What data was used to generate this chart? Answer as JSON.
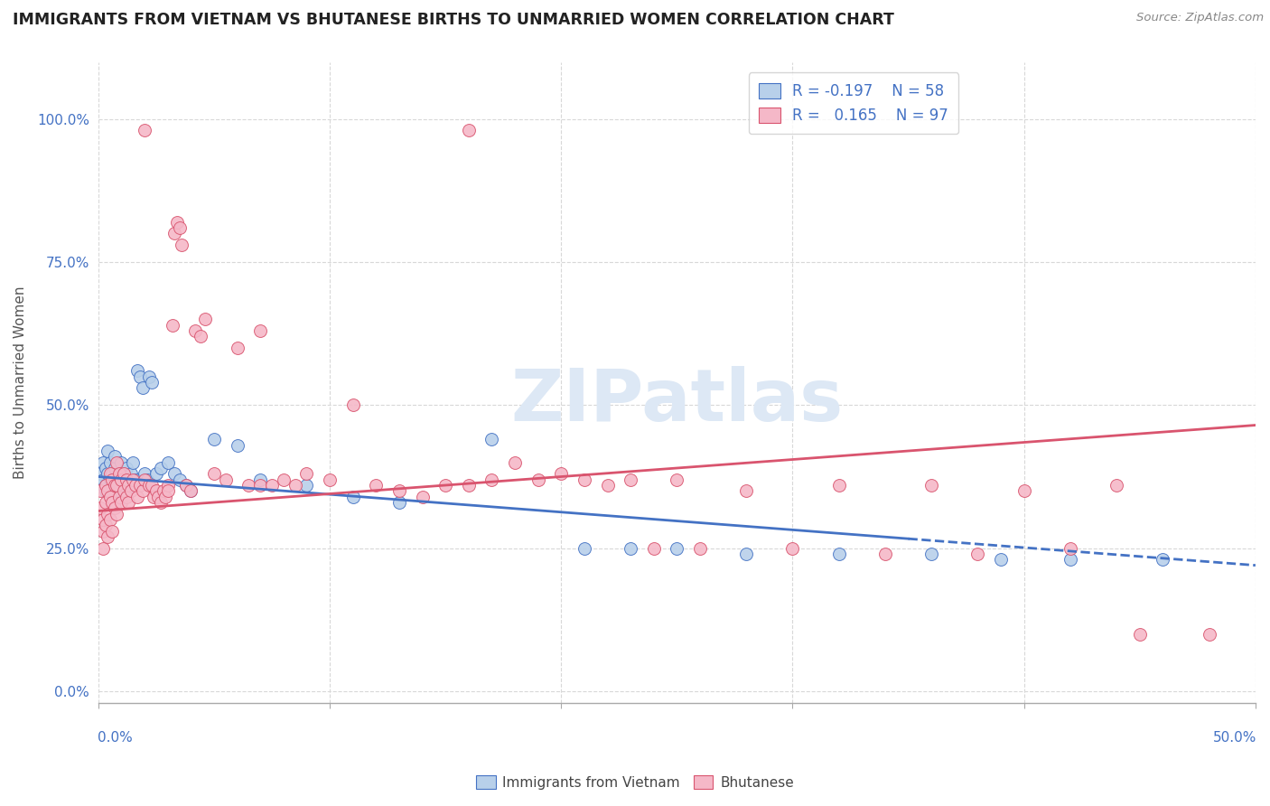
{
  "title": "IMMIGRANTS FROM VIETNAM VS BHUTANESE BIRTHS TO UNMARRIED WOMEN CORRELATION CHART",
  "source": "Source: ZipAtlas.com",
  "ylabel": "Births to Unmarried Women",
  "ylabel_ticks": [
    "0.0%",
    "25.0%",
    "50.0%",
    "75.0%",
    "100.0%"
  ],
  "ylabel_tick_vals": [
    0.0,
    0.25,
    0.5,
    0.75,
    1.0
  ],
  "xlim": [
    0.0,
    0.5
  ],
  "ylim": [
    -0.02,
    1.1
  ],
  "color_blue": "#b8d0ea",
  "color_pink": "#f5b8c8",
  "color_line_blue": "#4472c4",
  "color_line_pink": "#d9546e",
  "color_title": "#222222",
  "color_source": "#888888",
  "color_axis": "#4472c4",
  "color_grid": "#d8d8d8",
  "blue_line": {
    "x0": 0.0,
    "y0": 0.375,
    "x1": 0.5,
    "y1": 0.22,
    "solid_end": 0.35
  },
  "pink_line": {
    "x0": 0.0,
    "y0": 0.315,
    "x1": 0.5,
    "y1": 0.465
  },
  "blue_points": [
    [
      0.001,
      0.38
    ],
    [
      0.002,
      0.4
    ],
    [
      0.002,
      0.37
    ],
    [
      0.003,
      0.39
    ],
    [
      0.003,
      0.35
    ],
    [
      0.003,
      0.36
    ],
    [
      0.004,
      0.38
    ],
    [
      0.004,
      0.42
    ],
    [
      0.005,
      0.4
    ],
    [
      0.005,
      0.37
    ],
    [
      0.006,
      0.38
    ],
    [
      0.006,
      0.36
    ],
    [
      0.007,
      0.39
    ],
    [
      0.007,
      0.41
    ],
    [
      0.008,
      0.37
    ],
    [
      0.008,
      0.35
    ],
    [
      0.009,
      0.38
    ],
    [
      0.009,
      0.36
    ],
    [
      0.01,
      0.4
    ],
    [
      0.01,
      0.37
    ],
    [
      0.011,
      0.38
    ],
    [
      0.011,
      0.36
    ],
    [
      0.012,
      0.39
    ],
    [
      0.012,
      0.35
    ],
    [
      0.013,
      0.37
    ],
    [
      0.014,
      0.38
    ],
    [
      0.015,
      0.4
    ],
    [
      0.016,
      0.37
    ],
    [
      0.017,
      0.56
    ],
    [
      0.018,
      0.55
    ],
    [
      0.019,
      0.53
    ],
    [
      0.02,
      0.38
    ],
    [
      0.021,
      0.37
    ],
    [
      0.022,
      0.55
    ],
    [
      0.023,
      0.54
    ],
    [
      0.025,
      0.38
    ],
    [
      0.027,
      0.39
    ],
    [
      0.03,
      0.4
    ],
    [
      0.033,
      0.38
    ],
    [
      0.035,
      0.37
    ],
    [
      0.038,
      0.36
    ],
    [
      0.04,
      0.35
    ],
    [
      0.05,
      0.44
    ],
    [
      0.06,
      0.43
    ],
    [
      0.07,
      0.37
    ],
    [
      0.09,
      0.36
    ],
    [
      0.11,
      0.34
    ],
    [
      0.13,
      0.33
    ],
    [
      0.17,
      0.44
    ],
    [
      0.21,
      0.25
    ],
    [
      0.23,
      0.25
    ],
    [
      0.25,
      0.25
    ],
    [
      0.28,
      0.24
    ],
    [
      0.32,
      0.24
    ],
    [
      0.36,
      0.24
    ],
    [
      0.39,
      0.23
    ],
    [
      0.42,
      0.23
    ],
    [
      0.46,
      0.23
    ]
  ],
  "pink_points": [
    [
      0.001,
      0.35
    ],
    [
      0.001,
      0.32
    ],
    [
      0.002,
      0.28
    ],
    [
      0.002,
      0.25
    ],
    [
      0.002,
      0.3
    ],
    [
      0.003,
      0.36
    ],
    [
      0.003,
      0.33
    ],
    [
      0.003,
      0.29
    ],
    [
      0.004,
      0.35
    ],
    [
      0.004,
      0.31
    ],
    [
      0.004,
      0.27
    ],
    [
      0.005,
      0.38
    ],
    [
      0.005,
      0.34
    ],
    [
      0.005,
      0.3
    ],
    [
      0.006,
      0.37
    ],
    [
      0.006,
      0.33
    ],
    [
      0.006,
      0.28
    ],
    [
      0.007,
      0.36
    ],
    [
      0.007,
      0.32
    ],
    [
      0.008,
      0.4
    ],
    [
      0.008,
      0.36
    ],
    [
      0.008,
      0.31
    ],
    [
      0.009,
      0.38
    ],
    [
      0.009,
      0.34
    ],
    [
      0.01,
      0.37
    ],
    [
      0.01,
      0.33
    ],
    [
      0.011,
      0.38
    ],
    [
      0.011,
      0.35
    ],
    [
      0.012,
      0.37
    ],
    [
      0.012,
      0.34
    ],
    [
      0.013,
      0.36
    ],
    [
      0.013,
      0.33
    ],
    [
      0.014,
      0.35
    ],
    [
      0.015,
      0.37
    ],
    [
      0.016,
      0.36
    ],
    [
      0.017,
      0.34
    ],
    [
      0.018,
      0.36
    ],
    [
      0.019,
      0.35
    ],
    [
      0.02,
      0.37
    ],
    [
      0.02,
      0.98
    ],
    [
      0.022,
      0.36
    ],
    [
      0.023,
      0.36
    ],
    [
      0.024,
      0.34
    ],
    [
      0.025,
      0.35
    ],
    [
      0.026,
      0.34
    ],
    [
      0.027,
      0.33
    ],
    [
      0.028,
      0.35
    ],
    [
      0.029,
      0.34
    ],
    [
      0.03,
      0.36
    ],
    [
      0.03,
      0.35
    ],
    [
      0.032,
      0.64
    ],
    [
      0.033,
      0.8
    ],
    [
      0.034,
      0.82
    ],
    [
      0.035,
      0.81
    ],
    [
      0.036,
      0.78
    ],
    [
      0.038,
      0.36
    ],
    [
      0.04,
      0.35
    ],
    [
      0.042,
      0.63
    ],
    [
      0.044,
      0.62
    ],
    [
      0.046,
      0.65
    ],
    [
      0.05,
      0.38
    ],
    [
      0.055,
      0.37
    ],
    [
      0.06,
      0.6
    ],
    [
      0.065,
      0.36
    ],
    [
      0.07,
      0.36
    ],
    [
      0.07,
      0.63
    ],
    [
      0.075,
      0.36
    ],
    [
      0.08,
      0.37
    ],
    [
      0.085,
      0.36
    ],
    [
      0.09,
      0.38
    ],
    [
      0.1,
      0.37
    ],
    [
      0.11,
      0.5
    ],
    [
      0.12,
      0.36
    ],
    [
      0.13,
      0.35
    ],
    [
      0.14,
      0.34
    ],
    [
      0.15,
      0.36
    ],
    [
      0.16,
      0.36
    ],
    [
      0.17,
      0.37
    ],
    [
      0.18,
      0.4
    ],
    [
      0.19,
      0.37
    ],
    [
      0.2,
      0.38
    ],
    [
      0.21,
      0.37
    ],
    [
      0.22,
      0.36
    ],
    [
      0.23,
      0.37
    ],
    [
      0.24,
      0.25
    ],
    [
      0.25,
      0.37
    ],
    [
      0.26,
      0.25
    ],
    [
      0.28,
      0.35
    ],
    [
      0.3,
      0.25
    ],
    [
      0.32,
      0.36
    ],
    [
      0.34,
      0.24
    ],
    [
      0.36,
      0.36
    ],
    [
      0.38,
      0.24
    ],
    [
      0.4,
      0.35
    ],
    [
      0.42,
      0.25
    ],
    [
      0.44,
      0.36
    ],
    [
      0.16,
      0.98
    ],
    [
      0.45,
      0.1
    ],
    [
      0.48,
      0.1
    ]
  ]
}
